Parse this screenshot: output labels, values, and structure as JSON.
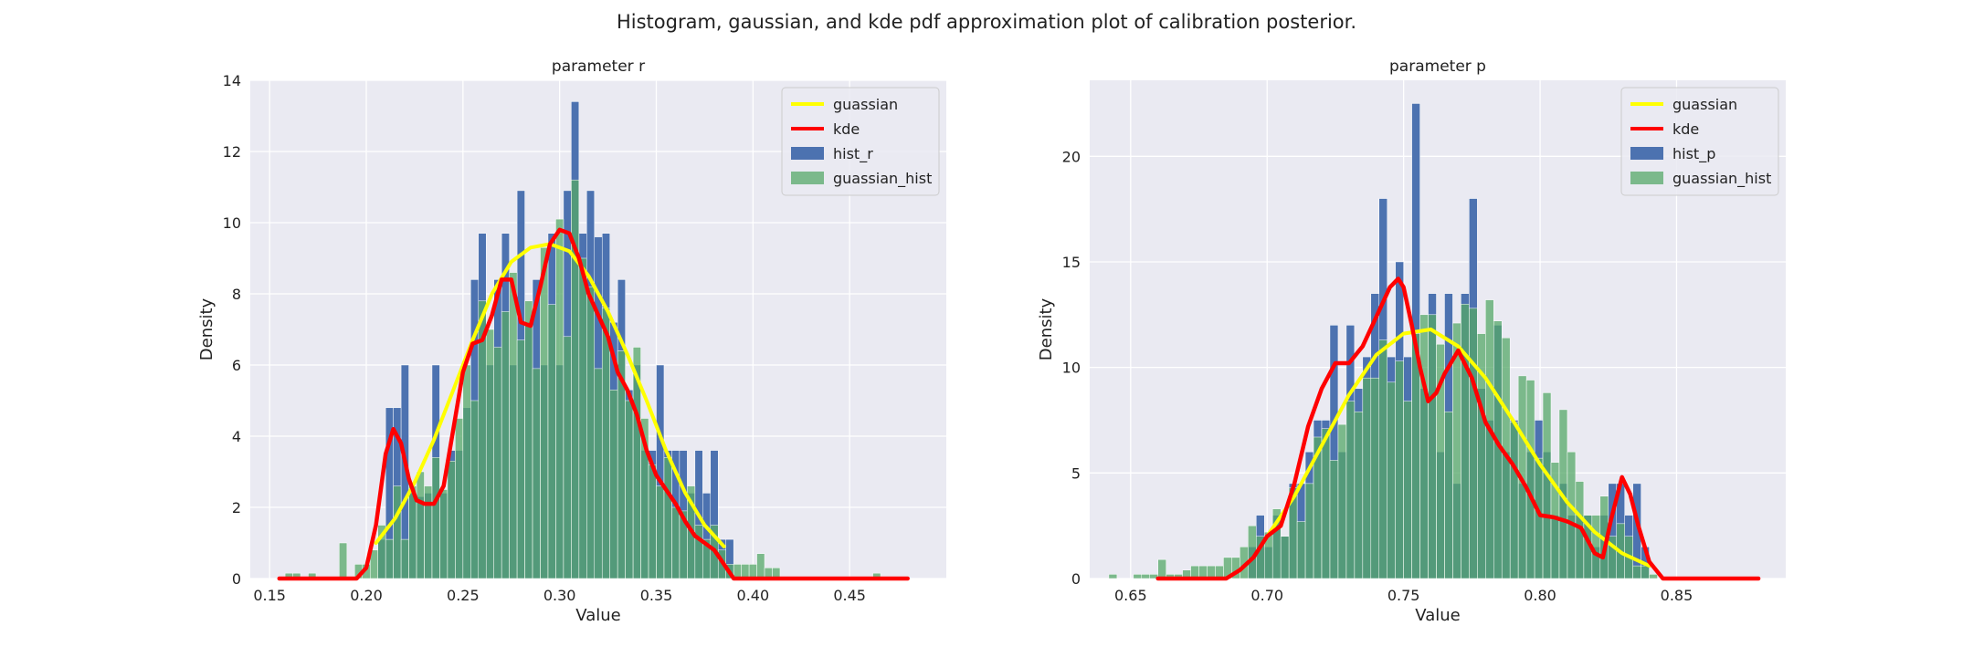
{
  "figure": {
    "suptitle": "Histogram, gaussian, and kde pdf approximation plot of calibration posterior."
  },
  "colors": {
    "plot_bg": "#EAEAF2",
    "grid": "#FFFFFF",
    "hist_blue": "#4C72B0",
    "gauss_hist_green": "#55A868",
    "gaussian_line": "#FFFF00",
    "kde_line": "#FF0000",
    "edge": "#FFFFFF"
  },
  "chart_data": [
    {
      "type": "histogram",
      "title": "parameter r",
      "xlabel": "Value",
      "ylabel": "Density",
      "xlim": [
        0.14,
        0.5
      ],
      "ylim": [
        0,
        14
      ],
      "xticks": [
        0.15,
        0.2,
        0.25,
        0.3,
        0.35,
        0.4,
        0.45
      ],
      "xtick_labels": [
        "0.15",
        "0.20",
        "0.25",
        "0.30",
        "0.35",
        "0.40",
        "0.45"
      ],
      "yticks": [
        0,
        2,
        4,
        6,
        8,
        10,
        12,
        14
      ],
      "ytick_labels": [
        "0",
        "2",
        "4",
        "6",
        "8",
        "10",
        "12",
        "14"
      ],
      "grid": true,
      "legend": {
        "position": "upper right",
        "entries": [
          "guassian",
          "kde",
          "hist_r",
          "guassian_hist"
        ]
      },
      "series": [
        {
          "name": "hist_r",
          "kind": "bars",
          "bin_width": 0.004,
          "bin_left": [
            0.206,
            0.21,
            0.214,
            0.218,
            0.222,
            0.226,
            0.23,
            0.234,
            0.238,
            0.242,
            0.246,
            0.25,
            0.254,
            0.258,
            0.262,
            0.266,
            0.27,
            0.274,
            0.278,
            0.282,
            0.286,
            0.29,
            0.294,
            0.298,
            0.302,
            0.306,
            0.31,
            0.314,
            0.318,
            0.322,
            0.326,
            0.33,
            0.334,
            0.338,
            0.342,
            0.346,
            0.35,
            0.354,
            0.358,
            0.362,
            0.366,
            0.37,
            0.374,
            0.378,
            0.382,
            0.386
          ],
          "values": [
            1.1,
            4.8,
            4.8,
            6.0,
            2.4,
            2.3,
            2.4,
            6.0,
            2.4,
            3.6,
            3.6,
            4.8,
            8.4,
            9.7,
            6.0,
            8.4,
            9.7,
            6.0,
            10.9,
            7.2,
            8.4,
            6.0,
            9.7,
            6.0,
            10.9,
            13.4,
            9.7,
            10.9,
            9.6,
            9.7,
            7.2,
            8.4,
            5.3,
            6.0,
            3.6,
            3.6,
            6.0,
            3.6,
            3.6,
            3.6,
            2.4,
            3.6,
            2.4,
            3.6,
            1.1,
            1.1
          ]
        },
        {
          "name": "guassian_hist",
          "kind": "bars",
          "bin_width": 0.004,
          "bin_left": [
            0.158,
            0.162,
            0.17,
            0.186,
            0.194,
            0.198,
            0.202,
            0.206,
            0.21,
            0.214,
            0.218,
            0.222,
            0.226,
            0.23,
            0.234,
            0.238,
            0.242,
            0.246,
            0.25,
            0.254,
            0.258,
            0.262,
            0.266,
            0.27,
            0.274,
            0.278,
            0.282,
            0.286,
            0.29,
            0.294,
            0.298,
            0.302,
            0.306,
            0.31,
            0.314,
            0.318,
            0.322,
            0.326,
            0.33,
            0.334,
            0.338,
            0.342,
            0.346,
            0.35,
            0.354,
            0.358,
            0.362,
            0.366,
            0.37,
            0.374,
            0.378,
            0.382,
            0.386,
            0.39,
            0.394,
            0.398,
            0.402,
            0.406,
            0.41,
            0.462
          ],
          "values": [
            0.15,
            0.15,
            0.15,
            1.0,
            0.4,
            0.4,
            0.8,
            1.5,
            1.1,
            2.6,
            1.1,
            2.6,
            3.0,
            2.6,
            3.4,
            2.5,
            3.3,
            4.5,
            6.0,
            5.0,
            7.8,
            7.0,
            6.5,
            7.5,
            8.6,
            6.7,
            7.8,
            5.9,
            9.3,
            7.7,
            10.1,
            6.8,
            11.2,
            9.0,
            8.2,
            5.9,
            7.6,
            5.3,
            6.4,
            5.0,
            6.5,
            4.5,
            3.2,
            2.6,
            3.4,
            2.0,
            1.9,
            2.6,
            1.5,
            1.1,
            1.5,
            0.8,
            0.4,
            0.4,
            0.4,
            0.4,
            0.7,
            0.3,
            0.3,
            0.15
          ]
        },
        {
          "name": "guassian",
          "kind": "line",
          "x": [
            0.205,
            0.215,
            0.225,
            0.235,
            0.245,
            0.255,
            0.265,
            0.275,
            0.285,
            0.295,
            0.305,
            0.315,
            0.325,
            0.335,
            0.345,
            0.355,
            0.365,
            0.375,
            0.385
          ],
          "y": [
            1.0,
            1.7,
            2.7,
            3.9,
            5.3,
            6.7,
            8.0,
            8.9,
            9.3,
            9.4,
            9.2,
            8.5,
            7.5,
            6.3,
            5.0,
            3.6,
            2.4,
            1.5,
            0.9
          ]
        },
        {
          "name": "kde",
          "kind": "line",
          "x": [
            0.155,
            0.195,
            0.2,
            0.205,
            0.21,
            0.214,
            0.218,
            0.222,
            0.226,
            0.23,
            0.235,
            0.24,
            0.245,
            0.25,
            0.255,
            0.26,
            0.265,
            0.27,
            0.275,
            0.28,
            0.285,
            0.29,
            0.295,
            0.3,
            0.305,
            0.31,
            0.315,
            0.32,
            0.325,
            0.33,
            0.335,
            0.34,
            0.345,
            0.35,
            0.355,
            0.36,
            0.365,
            0.37,
            0.375,
            0.38,
            0.385,
            0.39,
            0.395,
            0.4,
            0.48
          ],
          "y": [
            0.0,
            0.0,
            0.3,
            1.5,
            3.5,
            4.2,
            3.8,
            2.8,
            2.2,
            2.1,
            2.1,
            2.6,
            4.2,
            5.8,
            6.6,
            6.7,
            7.4,
            8.4,
            8.4,
            7.2,
            7.1,
            8.2,
            9.4,
            9.8,
            9.7,
            9.0,
            8.0,
            7.4,
            6.8,
            5.8,
            5.3,
            4.6,
            3.6,
            2.9,
            2.5,
            2.1,
            1.6,
            1.2,
            1.0,
            0.8,
            0.4,
            0.0,
            0.0,
            0.0,
            0.0
          ]
        }
      ]
    },
    {
      "type": "histogram",
      "title": "parameter p",
      "xlabel": "Value",
      "ylabel": "Density",
      "xlim": [
        0.635,
        0.89
      ],
      "ylim": [
        0,
        23.6
      ],
      "xticks": [
        0.65,
        0.7,
        0.75,
        0.8,
        0.85
      ],
      "xtick_labels": [
        "0.65",
        "0.70",
        "0.75",
        "0.80",
        "0.85"
      ],
      "yticks": [
        0,
        5,
        10,
        15,
        20
      ],
      "ytick_labels": [
        "0",
        "5",
        "10",
        "15",
        "20"
      ],
      "grid": true,
      "legend": {
        "position": "upper right",
        "entries": [
          "guassian",
          "kde",
          "hist_p",
          "guassian_hist"
        ]
      },
      "series": [
        {
          "name": "hist_p",
          "kind": "bars",
          "bin_width": 0.003,
          "bin_left": [
            0.693,
            0.696,
            0.699,
            0.702,
            0.705,
            0.708,
            0.711,
            0.714,
            0.717,
            0.72,
            0.723,
            0.726,
            0.729,
            0.732,
            0.735,
            0.738,
            0.741,
            0.744,
            0.747,
            0.75,
            0.753,
            0.756,
            0.759,
            0.762,
            0.765,
            0.768,
            0.771,
            0.774,
            0.777,
            0.78,
            0.783,
            0.786,
            0.789,
            0.792,
            0.795,
            0.798,
            0.801,
            0.804,
            0.807,
            0.81,
            0.813,
            0.816,
            0.819,
            0.822,
            0.825,
            0.828,
            0.831,
            0.834,
            0.837
          ],
          "values": [
            1.5,
            3.0,
            1.5,
            3.0,
            2.0,
            4.5,
            4.5,
            6.0,
            7.5,
            7.5,
            12.0,
            6.0,
            12.0,
            9.0,
            10.5,
            13.5,
            18.0,
            10.5,
            15.0,
            10.5,
            22.5,
            9.0,
            13.5,
            6.0,
            13.5,
            4.5,
            13.5,
            18.0,
            9.0,
            7.5,
            12.0,
            6.0,
            7.5,
            4.5,
            6.0,
            7.5,
            6.0,
            3.0,
            4.5,
            3.0,
            3.0,
            3.0,
            1.5,
            3.0,
            4.5,
            4.5,
            3.0,
            4.5,
            1.5
          ]
        },
        {
          "name": "guassian_hist",
          "kind": "bars",
          "bin_width": 0.003,
          "bin_left": [
            0.642,
            0.651,
            0.654,
            0.657,
            0.66,
            0.663,
            0.666,
            0.669,
            0.672,
            0.675,
            0.678,
            0.681,
            0.684,
            0.687,
            0.69,
            0.693,
            0.696,
            0.699,
            0.702,
            0.705,
            0.708,
            0.711,
            0.714,
            0.717,
            0.72,
            0.723,
            0.726,
            0.729,
            0.732,
            0.735,
            0.738,
            0.741,
            0.744,
            0.747,
            0.75,
            0.753,
            0.756,
            0.759,
            0.762,
            0.765,
            0.768,
            0.771,
            0.774,
            0.777,
            0.78,
            0.783,
            0.786,
            0.789,
            0.792,
            0.795,
            0.798,
            0.801,
            0.804,
            0.807,
            0.81,
            0.813,
            0.816,
            0.819,
            0.822,
            0.825,
            0.828,
            0.831,
            0.834,
            0.837,
            0.84
          ],
          "values": [
            0.2,
            0.2,
            0.2,
            0.2,
            0.9,
            0.2,
            0.2,
            0.4,
            0.6,
            0.6,
            0.6,
            0.6,
            1.0,
            1.0,
            1.5,
            2.5,
            2.0,
            2.2,
            3.3,
            2.0,
            4.3,
            2.7,
            4.5,
            6.7,
            7.1,
            5.6,
            7.3,
            8.4,
            7.9,
            9.5,
            9.5,
            11.3,
            9.3,
            10.3,
            8.4,
            11.6,
            12.5,
            12.5,
            11.1,
            7.9,
            12.1,
            13.0,
            12.8,
            11.6,
            13.2,
            12.2,
            11.4,
            7.4,
            9.6,
            9.4,
            5.7,
            8.8,
            5.5,
            8.0,
            6.0,
            4.6,
            3.0,
            3.0,
            3.9,
            2.0,
            2.6,
            2.0,
            0.6,
            0.6,
            0.2
          ]
        },
        {
          "name": "guassian",
          "kind": "line",
          "x": [
            0.7,
            0.71,
            0.72,
            0.73,
            0.74,
            0.75,
            0.76,
            0.77,
            0.78,
            0.79,
            0.8,
            0.81,
            0.82,
            0.83,
            0.84
          ],
          "y": [
            2.0,
            3.9,
            6.3,
            8.7,
            10.6,
            11.6,
            11.8,
            11.0,
            9.5,
            7.5,
            5.4,
            3.6,
            2.2,
            1.2,
            0.6
          ]
        },
        {
          "name": "kde",
          "kind": "line",
          "x": [
            0.66,
            0.685,
            0.69,
            0.695,
            0.7,
            0.705,
            0.71,
            0.715,
            0.72,
            0.725,
            0.73,
            0.735,
            0.74,
            0.745,
            0.748,
            0.75,
            0.753,
            0.756,
            0.759,
            0.762,
            0.765,
            0.77,
            0.775,
            0.78,
            0.785,
            0.79,
            0.795,
            0.8,
            0.805,
            0.81,
            0.815,
            0.82,
            0.823,
            0.826,
            0.83,
            0.833,
            0.836,
            0.84,
            0.845,
            0.85,
            0.88
          ],
          "y": [
            0.0,
            0.0,
            0.4,
            1.0,
            2.0,
            2.5,
            4.5,
            7.2,
            9.0,
            10.2,
            10.2,
            11.0,
            12.4,
            13.8,
            14.2,
            13.8,
            12.0,
            10.0,
            8.4,
            8.8,
            9.7,
            10.8,
            9.5,
            7.4,
            6.3,
            5.4,
            4.3,
            3.0,
            2.9,
            2.7,
            2.4,
            1.2,
            1.0,
            2.8,
            4.8,
            4.0,
            2.5,
            0.8,
            0.0,
            0.0,
            0.0
          ]
        }
      ]
    }
  ]
}
